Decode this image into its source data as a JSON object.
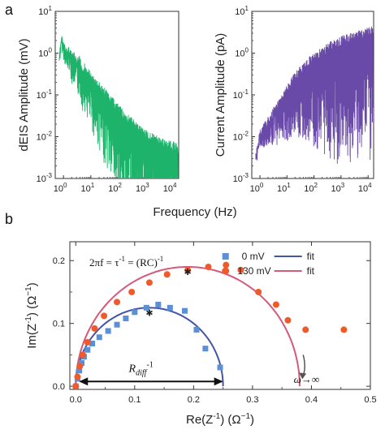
{
  "chart_data": [
    {
      "panel": "a",
      "type": "line",
      "ylabel": "dEIS Amplitude  (mV)",
      "xscale": "log",
      "yscale": "log",
      "xlim": [
        0.5,
        16000
      ],
      "ylim": [
        0.001,
        10
      ],
      "xticks": [
        "10",
        "10",
        "10",
        "10",
        "10"
      ],
      "xtick_exp": [
        "0",
        "1",
        "2",
        "3",
        "4"
      ],
      "yticks": [
        "10",
        "10",
        "10",
        "10",
        "10"
      ],
      "ytick_exp": [
        "-3",
        "-2",
        "-1",
        "0",
        "1"
      ],
      "color": "#1db36b",
      "series": [
        {
          "x": [
            0.7,
            0.85,
            1.0,
            1.3,
            1.6,
            2.0,
            2.5,
            3.0,
            4,
            5,
            6,
            7,
            8,
            10,
            12,
            15,
            18,
            22,
            27,
            33,
            40,
            50,
            60,
            80,
            100,
            130,
            170,
            220,
            300,
            400,
            550,
            750,
            1000,
            1400,
            2000,
            3000,
            4500,
            7000,
            10000,
            15000
          ],
          "y": [
            1.0,
            3.0,
            2.0,
            1.3,
            1.7,
            1.0,
            1.1,
            0.75,
            0.9,
            0.5,
            0.6,
            0.4,
            0.45,
            0.35,
            0.3,
            0.25,
            0.22,
            0.2,
            0.15,
            0.15,
            0.12,
            0.1,
            0.09,
            0.07,
            0.06,
            0.05,
            0.04,
            0.035,
            0.03,
            0.025,
            0.02,
            0.018,
            0.015,
            0.013,
            0.012,
            0.01,
            0.009,
            0.008,
            0.008,
            0.007
          ]
        }
      ]
    },
    {
      "panel": "a",
      "type": "line",
      "ylabel": "Current Amplitude  (pA)",
      "xscale": "log",
      "yscale": "log",
      "xlim": [
        0.5,
        16000
      ],
      "ylim": [
        0.001,
        10
      ],
      "xticks": [
        "10",
        "10",
        "10",
        "10",
        "10"
      ],
      "xtick_exp": [
        "0",
        "1",
        "2",
        "3",
        "4"
      ],
      "yticks": [
        "10",
        "10",
        "10",
        "10",
        "10"
      ],
      "ytick_exp": [
        "-3",
        "-2",
        "-1",
        "0",
        "1"
      ],
      "color": "#6a4aa8",
      "series": [
        {
          "x": [
            0.7,
            0.85,
            1.0,
            1.3,
            1.6,
            2.0,
            2.5,
            3.0,
            4,
            5,
            6,
            7,
            8,
            10,
            12,
            15,
            18,
            22,
            27,
            33,
            40,
            50,
            60,
            80,
            100,
            130,
            170,
            220,
            300,
            400,
            550,
            750,
            1000,
            1400,
            2000,
            3000,
            4500,
            7000,
            10000,
            15000
          ],
          "y": [
            0.004,
            0.008,
            0.015,
            0.02,
            0.025,
            0.03,
            0.04,
            0.05,
            0.06,
            0.08,
            0.1,
            0.12,
            0.15,
            0.18,
            0.22,
            0.27,
            0.32,
            0.38,
            0.45,
            0.5,
            0.6,
            0.7,
            0.8,
            0.9,
            1.0,
            1.1,
            1.3,
            1.5,
            1.7,
            1.9,
            2.1,
            2.3,
            2.6,
            2.8,
            3.0,
            3.3,
            3.6,
            3.9,
            4.2,
            4.6
          ]
        }
      ]
    },
    {
      "panel": "b",
      "type": "scatter",
      "xlabel": "Re(Z",
      "xlabel_sup": "-1",
      "xlabel_unit": ")  (Ω",
      "xlabel_unit_sup": "−1",
      "ylabel": "Im(Z",
      "ylabel_sup": "-1",
      "ylabel_unit": ")  (Ω",
      "ylabel_unit_sup": "−1",
      "xlim": [
        -0.01,
        0.5
      ],
      "ylim": [
        -0.005,
        0.23
      ],
      "xticks": [
        "0.0",
        "0.1",
        "0.2",
        "0.3",
        "0.4",
        "0.5"
      ],
      "yticks": [
        "0.0",
        "0.1",
        "0.2"
      ],
      "equation": "2πf = τ",
      "equation_sup1": "-1",
      "equation_mid": " = (RC)",
      "equation_sup2": "-1",
      "r_label": "R",
      "r_label_sub": "diff",
      "r_label_sup": "-1",
      "omega_label": "ω→∞",
      "series": [
        {
          "name": "0 mV",
          "marker": "square",
          "color": "#5b8fd6",
          "x": [
            0.0,
            0.003,
            0.006,
            0.01,
            0.014,
            0.02,
            0.028,
            0.04,
            0.055,
            0.07,
            0.085,
            0.1,
            0.12,
            0.14,
            0.16,
            0.185,
            0.205,
            0.22,
            0.245
          ],
          "y": [
            0.0,
            0.012,
            0.025,
            0.037,
            0.047,
            0.058,
            0.068,
            0.078,
            0.088,
            0.098,
            0.108,
            0.118,
            0.125,
            0.13,
            0.125,
            0.12,
            0.09,
            0.06,
            0.03
          ]
        },
        {
          "name": "130 mV",
          "marker": "circle",
          "color": "#f05a2a",
          "x": [
            0.0,
            0.003,
            0.007,
            0.012,
            0.02,
            0.032,
            0.048,
            0.07,
            0.095,
            0.125,
            0.155,
            0.19,
            0.225,
            0.255,
            0.28,
            0.31,
            0.34,
            0.36,
            0.39,
            0.455
          ],
          "y": [
            0.0,
            0.015,
            0.032,
            0.05,
            0.07,
            0.092,
            0.112,
            0.134,
            0.15,
            0.165,
            0.178,
            0.185,
            0.19,
            0.193,
            0.185,
            0.15,
            0.13,
            0.105,
            0.09,
            0.09
          ]
        },
        {
          "name": "fit",
          "type": "line",
          "color": "#4455a8",
          "center": 0.125,
          "radius": 0.125,
          "ystretch": 1.0
        },
        {
          "name": "fit",
          "type": "line",
          "color": "#d45a7a",
          "center": 0.19,
          "radius": 0.19,
          "ystretch": 1.0
        }
      ],
      "stars": [
        {
          "x": 0.125,
          "y": 0.125
        },
        {
          "x": 0.19,
          "y": 0.19
        }
      ],
      "legend": "top-right"
    }
  ],
  "panel_a_label": "a",
  "panel_b_label": "b",
  "panel_a_xlabel": "Frequency  (Hz)"
}
